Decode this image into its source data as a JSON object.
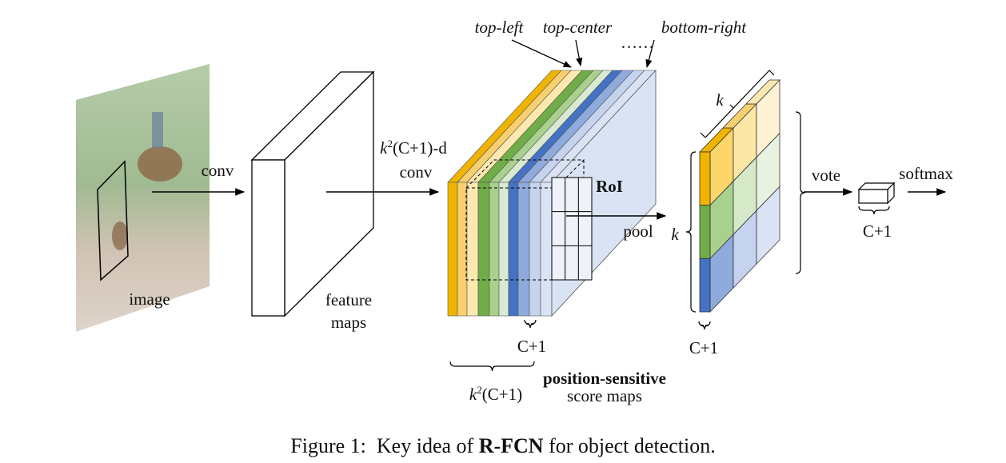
{
  "labels": {
    "top_left": "top-left",
    "top_center": "top-center",
    "ellipsis": "……",
    "bottom_right": "bottom-right",
    "conv1": "conv",
    "image": "image",
    "feature_maps": [
      "feature",
      "maps"
    ],
    "conv2_dim": {
      "base": "k",
      "sup": "2",
      "rest": "(C+1)-d"
    },
    "conv2": "conv",
    "roi": "RoI",
    "pool": "pool",
    "k_top": "k",
    "k_left": "k",
    "c1_pool": "C+1",
    "c1_score": "C+1",
    "score_dim": {
      "base": "k",
      "sup": "2",
      "rest": "(C+1)"
    },
    "ps_title": "position-sensitive",
    "ps_sub": "score maps",
    "vote": "vote",
    "softmax": "softmax",
    "c1_vote": "C+1"
  },
  "caption": {
    "prefix": "Figure 1:  Key idea of ",
    "name": "R-FCN",
    "suffix": " for object detection."
  }
}
